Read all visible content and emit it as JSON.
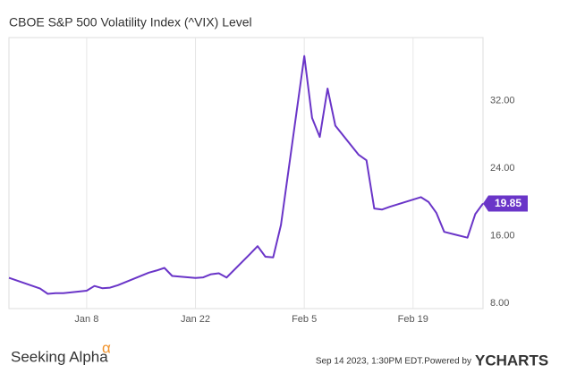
{
  "chart_data": {
    "type": "line",
    "title": "CBOE S&P 500 Volatility Index (^VIX) Level",
    "x": [
      "Dec 29",
      "Jan 2",
      "Jan 3",
      "Jan 4",
      "Jan 5",
      "Jan 8",
      "Jan 9",
      "Jan 10",
      "Jan 11",
      "Jan 12",
      "Jan 16",
      "Jan 17",
      "Jan 18",
      "Jan 19",
      "Jan 22",
      "Jan 23",
      "Jan 24",
      "Jan 25",
      "Jan 26",
      "Jan 29",
      "Jan 30",
      "Jan 31",
      "Feb 1",
      "Feb 2",
      "Feb 5",
      "Feb 6",
      "Feb 7",
      "Feb 8",
      "Feb 9",
      "Feb 12",
      "Feb 13",
      "Feb 14",
      "Feb 15",
      "Feb 16",
      "Feb 20",
      "Feb 21",
      "Feb 22",
      "Feb 23",
      "Feb 26",
      "Feb 27",
      "Feb 28"
    ],
    "series": [
      {
        "name": "CBOE S&P 500 Volatility Index (^VIX) Level",
        "color": "#6a35c8",
        "values": [
          11.04,
          9.77,
          9.15,
          9.22,
          9.22,
          9.52,
          10.08,
          9.82,
          9.88,
          10.16,
          11.66,
          11.91,
          12.22,
          11.27,
          11.03,
          11.1,
          11.47,
          11.58,
          11.08,
          13.84,
          14.79,
          13.54,
          13.47,
          17.31,
          37.32,
          29.98,
          27.73,
          33.46,
          29.06,
          25.61,
          24.97,
          19.26,
          19.13,
          19.46,
          20.6,
          20.02,
          18.72,
          16.49,
          15.8,
          18.59,
          19.85
        ]
      }
    ],
    "xlim": [
      "Dec 29",
      "Feb 28"
    ],
    "xticks": [
      "Jan 8",
      "Jan 22",
      "Feb 5",
      "Feb 19"
    ],
    "ylim": [
      7.4,
      39.5
    ],
    "yticks": [
      {
        "value": 8,
        "label": "8.00"
      },
      {
        "value": 16,
        "label": "16.00"
      },
      {
        "value": 24,
        "label": "24.00"
      },
      {
        "value": 32,
        "label": "32.00"
      }
    ],
    "grid": "x",
    "footer": {
      "brand": "Seeking Alpha",
      "brand_mark": "α",
      "timestamp": "Sep 14 2023, 1:30PM EDT.",
      "powered": "Powered by",
      "provider": "YCHARTS"
    }
  }
}
